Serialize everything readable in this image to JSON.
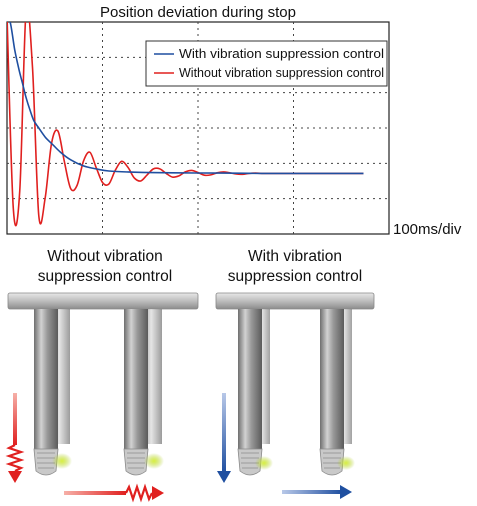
{
  "chart_data": {
    "type": "line",
    "title": "Position deviation during stop",
    "time_scale": "100ms/div",
    "grid": "dotted",
    "legend_position": "top-right",
    "series": [
      {
        "name": "With vibration suppression control",
        "color": "#1f4fa0",
        "x": [
          0.0,
          0.03,
          0.06,
          0.09,
          0.12,
          0.15,
          0.18,
          0.21,
          0.25,
          0.3,
          0.36,
          0.42,
          0.5,
          0.6,
          0.7,
          0.8,
          1.0,
          1.3,
          1.7,
          2.0,
          2.3,
          2.6,
          2.8
        ],
        "y": [
          5.4,
          4.9,
          4.1,
          3.5,
          3.0,
          2.5,
          2.1,
          1.75,
          1.5,
          1.2,
          0.95,
          0.7,
          0.45,
          0.25,
          0.15,
          0.08,
          0.04,
          0.02,
          0.01,
          0.0,
          0.0,
          0.0,
          0.0
        ]
      },
      {
        "name": "Without vibration suppression control",
        "color": "#e0201f",
        "x": [
          0.0,
          0.05,
          0.1,
          0.15,
          0.2,
          0.25,
          0.3,
          0.35,
          0.4,
          0.45,
          0.5,
          0.55,
          0.6,
          0.65,
          0.7,
          0.75,
          0.8,
          0.85,
          0.9,
          0.95,
          1.0,
          1.05,
          1.1,
          1.15,
          1.2,
          1.25,
          1.3,
          1.35,
          1.4,
          1.45,
          1.5,
          1.55,
          1.6,
          1.65,
          1.7,
          1.75,
          1.8,
          1.85,
          1.9,
          1.95,
          2.0,
          2.1,
          2.2,
          2.4,
          2.6,
          2.8
        ],
        "y": [
          5.2,
          -1.2,
          -0.6,
          5.4,
          3.5,
          -1.4,
          -0.8,
          1.0,
          1.4,
          0.4,
          -0.5,
          -0.4,
          0.4,
          0.7,
          0.2,
          -0.3,
          -0.35,
          0.1,
          0.4,
          0.2,
          -0.15,
          -0.25,
          -0.05,
          0.15,
          0.15,
          0.0,
          -0.12,
          -0.08,
          0.05,
          0.1,
          0.03,
          -0.06,
          -0.05,
          0.02,
          0.05,
          0.02,
          -0.02,
          -0.03,
          0.0,
          0.01,
          0.0,
          0.0,
          0.0,
          0.0,
          0.0,
          0.0
        ]
      }
    ],
    "xlim": [
      0,
      3.0
    ],
    "ylim": [
      -2,
      5
    ]
  },
  "captions": {
    "without_line1": "Without vibration",
    "without_line2": "suppression control",
    "with_line1": "With vibration",
    "with_line2": "suppression control"
  },
  "colors": {
    "without": "#e0201f",
    "with": "#1f4fa0",
    "rail": "#c4c4c4",
    "tip_glow": "#c8e630"
  }
}
